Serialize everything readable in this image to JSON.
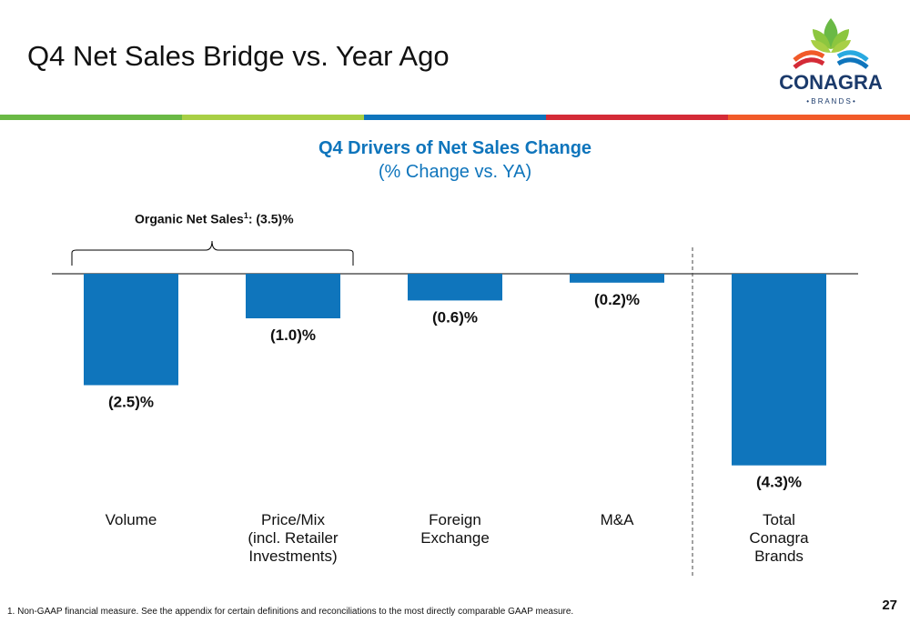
{
  "slide": {
    "title": "Q4 Net Sales Bridge vs. Year Ago",
    "footnote": "1. Non-GAAP financial measure. See the appendix for certain definitions and reconciliations to the most directly comparable GAAP measure.",
    "page_number": "27"
  },
  "logo": {
    "name": "CONAGRA",
    "sub": "• B R A N D S •"
  },
  "color_bar": [
    "#6ab945",
    "#a8cf45",
    "#0f75bc",
    "#d42b37",
    "#f15a29"
  ],
  "bracket": {
    "label": "Organic Net Sales",
    "sup": "1",
    "value": ": (3.5)%"
  },
  "chart_data": {
    "type": "bar",
    "title": "Q4 Drivers of Net Sales Change",
    "subtitle": "(% Change vs. YA)",
    "categories": [
      [
        "Volume"
      ],
      [
        "Price/Mix",
        "(incl. Retailer",
        "Investments)"
      ],
      [
        "Foreign",
        "Exchange"
      ],
      [
        "M&A"
      ],
      [
        "Total",
        "Conagra",
        "Brands"
      ]
    ],
    "values": [
      -2.5,
      -1.0,
      -0.6,
      -0.2,
      -4.3
    ],
    "data_labels": [
      "(2.5)%",
      "(1.0)%",
      "(0.6)%",
      "(0.2)%",
      "(4.3)%"
    ],
    "bar_color": "#0f75bc",
    "ylim": [
      -4.3,
      0
    ],
    "grid": false
  }
}
